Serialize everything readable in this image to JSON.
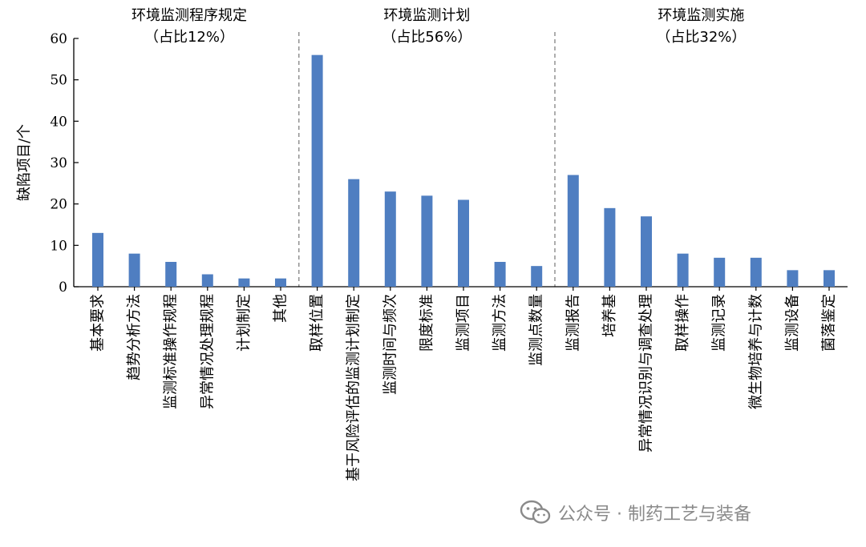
{
  "chart_data": {
    "type": "bar",
    "ylabel": "缺陷项目/个",
    "ylim": [
      0,
      60
    ],
    "yticks": [
      0,
      10,
      20,
      30,
      40,
      50,
      60
    ],
    "bar_color": "#4F7EC1",
    "groups": [
      {
        "title": "环境监测程序规定",
        "share": "（占比12%）",
        "categories": [
          "基本要求",
          "趋势分析方法",
          "监测标准操作规程",
          "异常情况处理规程",
          "计划制定",
          "其他"
        ],
        "values": [
          13,
          8,
          6,
          3,
          2,
          2
        ]
      },
      {
        "title": "环境监测计划",
        "share": "（占比56%）",
        "categories": [
          "取样位置",
          "基于风险评估的监测计划制定",
          "监测时间与频次",
          "限度标准",
          "监测项目",
          "监测方法",
          "监测点数量"
        ],
        "values": [
          56,
          26,
          23,
          22,
          21,
          6,
          5
        ]
      },
      {
        "title": "环境监测实施",
        "share": "（占比32%）",
        "categories": [
          "监测报告",
          "培养基",
          "异常情况识别与调查处理",
          "取样操作",
          "监测记录",
          "微生物培养与计数",
          "监测设备",
          "菌落鉴定"
        ],
        "values": [
          27,
          19,
          17,
          8,
          7,
          7,
          4,
          4
        ]
      }
    ]
  },
  "watermark": {
    "text": "公众号 · 制药工艺与装备",
    "icon": "wechat-icon"
  }
}
